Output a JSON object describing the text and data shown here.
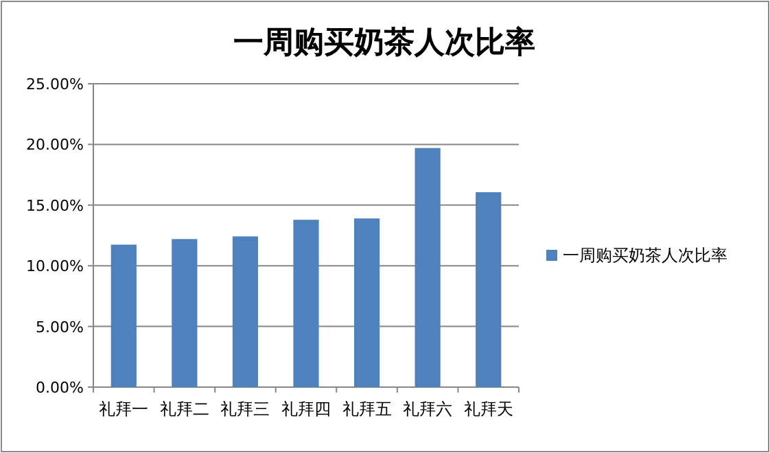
{
  "chart_data": {
    "type": "bar",
    "title": "一周购买奶茶人次比率",
    "categories": [
      "礼拜一",
      "礼拜二",
      "礼拜三",
      "礼拜四",
      "礼拜五",
      "礼拜六",
      "礼拜天"
    ],
    "series": [
      {
        "name": "一周购买奶茶人次比率",
        "color": "#4f81bd",
        "values": [
          11.74,
          12.2,
          12.42,
          13.79,
          13.9,
          19.7,
          16.06
        ]
      }
    ],
    "ylim": [
      0,
      25
    ],
    "yticks": [
      {
        "value": 0,
        "label": "0.00%"
      },
      {
        "value": 5,
        "label": "5.00%"
      },
      {
        "value": 10,
        "label": "10.00%"
      },
      {
        "value": 15,
        "label": "15.00%"
      },
      {
        "value": 20,
        "label": "20.00%"
      },
      {
        "value": 25,
        "label": "25.00%"
      }
    ],
    "grid": "y",
    "legend": "right"
  }
}
